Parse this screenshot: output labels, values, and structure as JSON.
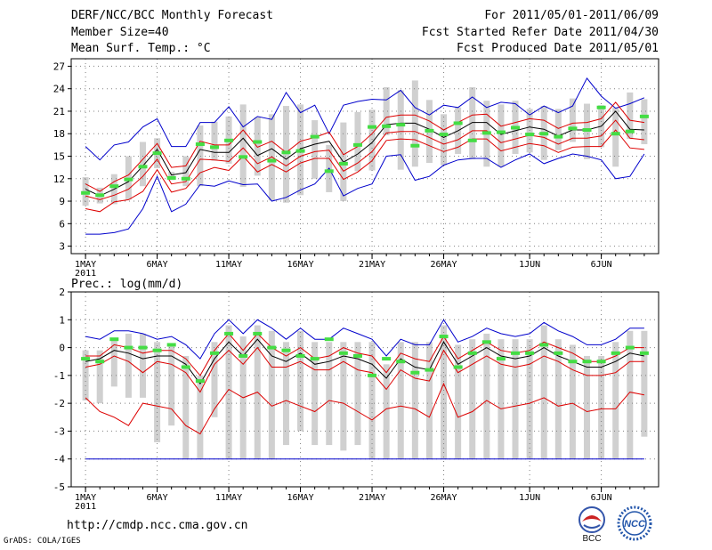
{
  "header": {
    "title": "DERF/NCC/BCC Monthly Forecast",
    "member_size": "Member Size=40",
    "variable1": "Mean Surf. Temp.: °C",
    "period": "For 2011/05/01-2011/06/09",
    "started": "Fcst Started Refer Date 2011/04/30",
    "produced": "Fcst Produced Date 2011/05/01"
  },
  "footer": {
    "url": "http://cmdp.ncc.cma.gov.cn",
    "credit": "GrADS: COLA/IGES",
    "logo_bcc": "BCC",
    "logo_ncc": "NCC"
  },
  "colors": {
    "max_min": "#0000cc",
    "spread": "#dd0000",
    "mean": "#000000",
    "obs": "#44dd44",
    "bar": "#d0d0d0",
    "grid": "#808080"
  },
  "chart_data": [
    {
      "type": "line",
      "title": "Mean Surf. Temp.: °C",
      "x_ticks": [
        {
          "i": 0,
          "label": "1MAY",
          "sub": "2011"
        },
        {
          "i": 5,
          "label": "6MAY"
        },
        {
          "i": 10,
          "label": "11MAY"
        },
        {
          "i": 15,
          "label": "16MAY"
        },
        {
          "i": 20,
          "label": "21MAY"
        },
        {
          "i": 25,
          "label": "26MAY"
        },
        {
          "i": 31,
          "label": "1JUN"
        },
        {
          "i": 36,
          "label": "6JUN"
        }
      ],
      "xlim": [
        -1,
        40
      ],
      "ylim": [
        2,
        28
      ],
      "y_ticks": [
        3,
        6,
        9,
        12,
        15,
        18,
        21,
        24,
        27
      ],
      "series": [
        {
          "name": "max",
          "role": "max_min",
          "values": [
            16.3,
            14.5,
            16.5,
            16.9,
            18.9,
            20,
            16.3,
            16.3,
            19.5,
            19.5,
            21.6,
            18.9,
            20.3,
            19.9,
            23.5,
            20.8,
            21.8,
            18,
            21.8,
            22.3,
            22.6,
            22.5,
            23.8,
            21.5,
            20.5,
            21.8,
            21.5,
            22.9,
            21.5,
            22.2,
            22,
            20.5,
            21.7,
            20.8,
            21.7,
            25.4,
            23,
            21.4,
            22,
            22.8
          ]
        },
        {
          "name": "upper",
          "role": "spread",
          "values": [
            11.3,
            10.3,
            11.6,
            12.5,
            14.6,
            16.7,
            13.5,
            13.7,
            17,
            16.5,
            16.5,
            18.5,
            16.2,
            17,
            15.5,
            17,
            17.5,
            18.2,
            15.2,
            16.3,
            18,
            20.2,
            20.5,
            20.5,
            19.7,
            18.5,
            19.5,
            20.5,
            20.6,
            19,
            19.5,
            20,
            19.8,
            18.7,
            19.4,
            19.5,
            20,
            22.2,
            19.8,
            19.5
          ]
        },
        {
          "name": "mean",
          "role": "mean",
          "values": [
            10.6,
            9.7,
            10.6,
            11.6,
            13.7,
            15.9,
            12.5,
            12.8,
            15.9,
            15.5,
            15.5,
            17.4,
            15.1,
            16,
            14.6,
            16,
            16.6,
            17,
            14.2,
            15.3,
            16.8,
            19.2,
            19.4,
            19.4,
            18.6,
            17.5,
            18.4,
            19.5,
            19.5,
            17.9,
            18.4,
            18.9,
            18.6,
            17.7,
            18.5,
            18.5,
            19,
            21,
            18.6,
            18.5
          ]
        },
        {
          "name": "lower",
          "role": "spread",
          "values": [
            9.7,
            9.2,
            9.8,
            10.6,
            12.3,
            14.6,
            11.3,
            11.6,
            14.6,
            14.5,
            14.3,
            16.1,
            14,
            14.9,
            13.7,
            15,
            15.6,
            15.8,
            13,
            14.1,
            15.6,
            18.1,
            18.3,
            18.3,
            17.5,
            16.6,
            17.2,
            18.4,
            18.4,
            16.8,
            17.3,
            17.8,
            17.5,
            16.6,
            17.4,
            17.4,
            17.7,
            19.8,
            17.4,
            17.2
          ]
        },
        {
          "name": "lowest",
          "role": "spread",
          "values": [
            8,
            7.6,
            8.9,
            9.2,
            10.3,
            13.2,
            10.2,
            10.7,
            12.8,
            13.5,
            13.1,
            15,
            12.9,
            13.9,
            12.9,
            14.1,
            14.7,
            14.7,
            11.9,
            12.9,
            14.4,
            17.1,
            17.3,
            17.2,
            16.4,
            15.6,
            16.2,
            17.3,
            17.3,
            15.7,
            16.2,
            16.7,
            16.4,
            15.5,
            16.2,
            16.3,
            16.3,
            18.5,
            16.1,
            15.9
          ]
        },
        {
          "name": "min",
          "role": "max_min",
          "values": [
            4.6,
            4.6,
            4.8,
            5.3,
            8,
            12.3,
            7.6,
            8.6,
            11.2,
            11,
            11.7,
            11.2,
            11.3,
            9,
            9.5,
            10.5,
            11.3,
            13.4,
            9.7,
            10.7,
            11.3,
            15,
            15.2,
            11.8,
            12.3,
            13.8,
            14.5,
            14.7,
            14.7,
            13.5,
            14.5,
            15.3,
            14,
            14.7,
            15.3,
            15,
            14.5,
            12,
            12.3,
            15.3
          ]
        }
      ],
      "obs": [
        10.1,
        9.8,
        11,
        11.9,
        13.6,
        15.4,
        12.1,
        12,
        16.6,
        16.2,
        17.1,
        14.9,
        16.9,
        14.4,
        15.5,
        15.7,
        17.6,
        13,
        14,
        16.5,
        18.9,
        19,
        19.2,
        16.4,
        18.4,
        17.9,
        19.4,
        17.1,
        18.1,
        18.2,
        18.8,
        17.9,
        18,
        17.6,
        18.7,
        18.5,
        21.5,
        18,
        18.3,
        20.3
      ],
      "bars": [
        [
          8.4,
          12.2
        ],
        [
          8.7,
          10.8
        ],
        [
          8.6,
          12.6
        ],
        [
          9.2,
          15
        ],
        [
          11,
          16.9
        ],
        [
          13.4,
          17.4
        ],
        [
          11.8,
          12.9
        ],
        [
          11,
          15
        ],
        [
          11,
          19.1
        ],
        [
          14.4,
          19.6
        ],
        [
          14,
          20.3
        ],
        [
          10.9,
          21.9
        ],
        [
          12.4,
          20.2
        ],
        [
          9.1,
          20.6
        ],
        [
          8.8,
          21.7
        ],
        [
          9.8,
          21.9
        ],
        [
          12,
          19.8
        ],
        [
          10.2,
          16.5
        ],
        [
          9,
          19.5
        ],
        [
          13,
          20.9
        ],
        [
          13.1,
          21.2
        ],
        [
          17.8,
          24.2
        ],
        [
          13.2,
          23.8
        ],
        [
          13.6,
          25.1
        ],
        [
          14.1,
          22.5
        ],
        [
          13.8,
          20.6
        ],
        [
          15.3,
          21.5
        ],
        [
          14.6,
          24.2
        ],
        [
          13.6,
          22.4
        ],
        [
          13.6,
          21.9
        ],
        [
          15.3,
          22.4
        ],
        [
          15.5,
          21.3
        ],
        [
          14.5,
          21.7
        ],
        [
          15.8,
          21.3
        ],
        [
          16.9,
          22.7
        ],
        [
          14.6,
          22
        ],
        [
          16.2,
          21.8
        ],
        [
          13.6,
          21.5
        ],
        [
          17.3,
          23.5
        ],
        [
          16.6,
          22.6
        ]
      ]
    },
    {
      "type": "line",
      "title": "Prec.: log(mm/d)",
      "x_ticks": [
        {
          "i": 0,
          "label": "1MAY",
          "sub": "2011"
        },
        {
          "i": 5,
          "label": "6MAY"
        },
        {
          "i": 10,
          "label": "11MAY"
        },
        {
          "i": 15,
          "label": "16MAY"
        },
        {
          "i": 20,
          "label": "21MAY"
        },
        {
          "i": 25,
          "label": "26MAY"
        },
        {
          "i": 31,
          "label": "1JUN"
        },
        {
          "i": 36,
          "label": "6JUN"
        }
      ],
      "xlim": [
        -1,
        40
      ],
      "ylim": [
        -5,
        2
      ],
      "y_ticks": [
        -5,
        -4,
        -3,
        -2,
        -1,
        0,
        1,
        2
      ],
      "series": [
        {
          "name": "max",
          "role": "max_min",
          "values": [
            0.4,
            0.3,
            0.6,
            0.6,
            0.5,
            0.3,
            0.4,
            0.1,
            -0.4,
            0.5,
            1,
            0.5,
            1,
            0.7,
            0.3,
            0.7,
            0.3,
            0.3,
            0.7,
            0.5,
            0.3,
            -0.3,
            0.3,
            0.1,
            0.1,
            1,
            0.2,
            0.4,
            0.7,
            0.5,
            0.4,
            0.5,
            0.9,
            0.6,
            0.4,
            0.1,
            0.1,
            0.3,
            0.7,
            0.7
          ]
        },
        {
          "name": "upper",
          "role": "spread",
          "values": [
            -0.3,
            -0.3,
            0.1,
            0,
            -0.2,
            -0.1,
            -0.1,
            -0.4,
            -1,
            -0.1,
            0.5,
            -0.1,
            0.5,
            0,
            -0.3,
            0,
            -0.4,
            -0.3,
            0,
            -0.2,
            -0.3,
            -0.9,
            -0.2,
            -0.4,
            -0.5,
            0.4,
            -0.4,
            -0.1,
            0.2,
            -0.1,
            -0.2,
            -0.1,
            0.2,
            0,
            -0.2,
            -0.5,
            -0.5,
            -0.3,
            0,
            0
          ]
        },
        {
          "name": "mean",
          "role": "mean",
          "values": [
            -0.5,
            -0.4,
            -0.1,
            -0.2,
            -0.4,
            -0.3,
            -0.3,
            -0.6,
            -1.3,
            -0.4,
            0.2,
            -0.3,
            0.3,
            -0.3,
            -0.5,
            -0.2,
            -0.6,
            -0.5,
            -0.3,
            -0.4,
            -0.6,
            -1.1,
            -0.4,
            -0.7,
            -0.8,
            0.2,
            -0.6,
            -0.3,
            0,
            -0.3,
            -0.4,
            -0.3,
            0,
            -0.3,
            -0.5,
            -0.7,
            -0.7,
            -0.5,
            -0.2,
            -0.3
          ]
        },
        {
          "name": "lower",
          "role": "spread",
          "values": [
            -0.7,
            -0.6,
            -0.3,
            -0.5,
            -0.9,
            -0.5,
            -0.6,
            -0.9,
            -1.6,
            -0.6,
            -0.1,
            -0.6,
            0,
            -0.7,
            -0.7,
            -0.5,
            -0.8,
            -0.8,
            -0.5,
            -0.8,
            -0.9,
            -1.5,
            -0.8,
            -1.1,
            -1.2,
            -0.1,
            -0.9,
            -0.6,
            -0.3,
            -0.6,
            -0.7,
            -0.6,
            -0.3,
            -0.5,
            -0.8,
            -1,
            -1,
            -0.9,
            -0.5,
            -0.5
          ]
        },
        {
          "name": "lowest",
          "role": "spread",
          "values": [
            -1.8,
            -2.3,
            -2.5,
            -2.8,
            -2,
            -2.1,
            -2.2,
            -2.8,
            -3.1,
            -2.2,
            -1.5,
            -1.8,
            -1.6,
            -2.1,
            -1.9,
            -2.1,
            -2.3,
            -1.9,
            -2,
            -2.3,
            -2.6,
            -2.2,
            -2.1,
            -2.2,
            -2.5,
            -1.3,
            -2.5,
            -2.3,
            -1.9,
            -2.2,
            -2.1,
            -2,
            -1.8,
            -2.1,
            -2,
            -2.3,
            -2.2,
            -2.2,
            -1.6,
            -1.7
          ]
        },
        {
          "name": "min",
          "role": "max_min",
          "values": [
            -4,
            -4,
            -4,
            -4,
            -4,
            -4,
            -4,
            -4,
            -4,
            -4,
            -4,
            -4,
            -4,
            -4,
            -4,
            -4,
            -4,
            -4,
            -4,
            -4,
            -4,
            -4,
            -4,
            -4,
            -4,
            -4,
            -4,
            -4,
            -4,
            -4,
            -4,
            -4,
            -4,
            -4,
            -4,
            -4,
            -4,
            -4,
            -4,
            -4
          ]
        }
      ],
      "obs": [
        -0.4,
        -0.5,
        0.3,
        0,
        0,
        -0.1,
        0.1,
        -0.7,
        -1.2,
        -0.2,
        0.5,
        -0.3,
        0.5,
        0,
        -0.1,
        -0.3,
        -0.4,
        0.3,
        -0.2,
        -0.3,
        -1,
        -0.4,
        -0.5,
        -0.9,
        -0.8,
        0.4,
        -0.7,
        -0.2,
        0.2,
        -0.4,
        -0.2,
        -0.2,
        0.1,
        -0.2,
        -0.5,
        -0.5,
        -0.5,
        -0.2,
        0,
        -0.2
      ],
      "bars": [
        [
          -1.9,
          -0.1
        ],
        [
          -2,
          -0.1
        ],
        [
          -1.4,
          0.3
        ],
        [
          -1.8,
          0.5
        ],
        [
          -1.8,
          0.5
        ],
        [
          -3.4,
          0.2
        ],
        [
          -2.8,
          0.1
        ],
        [
          -4,
          -0.3
        ],
        [
          -4,
          -1
        ],
        [
          -2.5,
          0.2
        ],
        [
          -4,
          0.8
        ],
        [
          -4,
          0.4
        ],
        [
          -4,
          0.8
        ],
        [
          -4,
          0.6
        ],
        [
          -3.5,
          0.2
        ],
        [
          -3,
          0.6
        ],
        [
          -3.5,
          0.2
        ],
        [
          -3.5,
          0.2
        ],
        [
          -3.7,
          0.2
        ],
        [
          -3.5,
          0.2
        ],
        [
          -4,
          0.2
        ],
        [
          -4,
          -0.6
        ],
        [
          -4,
          0.2
        ],
        [
          -4,
          0.2
        ],
        [
          -4,
          0.2
        ],
        [
          -4,
          0.8
        ],
        [
          -4,
          0.1
        ],
        [
          -4,
          0.3
        ],
        [
          -4,
          0.5
        ],
        [
          -4,
          0.3
        ],
        [
          -4,
          0.3
        ],
        [
          -4,
          0.3
        ],
        [
          -4,
          0.8
        ],
        [
          -4,
          0.3
        ],
        [
          -4,
          0.1
        ],
        [
          -4,
          -0.3
        ],
        [
          -4,
          -0.3
        ],
        [
          -4,
          0.2
        ],
        [
          -4,
          0.6
        ],
        [
          -3.2,
          0.6
        ]
      ]
    }
  ]
}
